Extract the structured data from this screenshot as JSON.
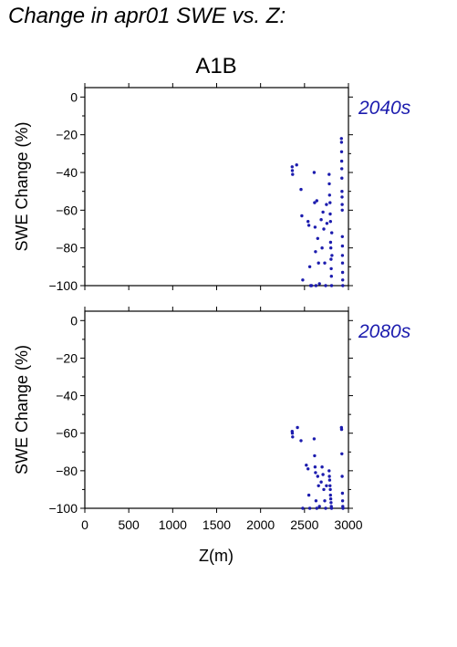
{
  "page_title": "Change in apr01 SWE vs. Z:",
  "chart_data": {
    "type": "scatter",
    "title": "A1B",
    "xlabel": "Z(m)",
    "ylabel": "SWE Change (%)",
    "xlim": [
      0,
      3000
    ],
    "ylim": [
      -100,
      5
    ],
    "xticks": [
      0,
      500,
      1000,
      1500,
      2000,
      2500,
      3000
    ],
    "yticks": [
      0,
      -20,
      -40,
      -60,
      -80,
      -100
    ],
    "marker_color": "#1c1cae",
    "grid": false,
    "panels": [
      {
        "label": "2040s",
        "points": [
          [
            2360,
            -37
          ],
          [
            2362,
            -39
          ],
          [
            2365,
            -41
          ],
          [
            2410,
            -36
          ],
          [
            2460,
            -49
          ],
          [
            2470,
            -63
          ],
          [
            2480,
            -97
          ],
          [
            2540,
            -66
          ],
          [
            2550,
            -68
          ],
          [
            2560,
            -90
          ],
          [
            2570,
            -101
          ],
          [
            2580,
            -100
          ],
          [
            2610,
            -40
          ],
          [
            2615,
            -56
          ],
          [
            2620,
            -69
          ],
          [
            2625,
            -82
          ],
          [
            2630,
            -101
          ],
          [
            2640,
            -55
          ],
          [
            2650,
            -75
          ],
          [
            2660,
            -88
          ],
          [
            2670,
            -99
          ],
          [
            2690,
            -65
          ],
          [
            2700,
            -80
          ],
          [
            2710,
            -61
          ],
          [
            2720,
            -70
          ],
          [
            2730,
            -88
          ],
          [
            2740,
            -100
          ],
          [
            2750,
            -57
          ],
          [
            2755,
            -67
          ],
          [
            2780,
            -41
          ],
          [
            2782,
            -46
          ],
          [
            2785,
            -52
          ],
          [
            2790,
            -56
          ],
          [
            2792,
            -62
          ],
          [
            2795,
            -66
          ],
          [
            2797,
            -77
          ],
          [
            2800,
            -80
          ],
          [
            2802,
            -86
          ],
          [
            2804,
            -91
          ],
          [
            2806,
            -95
          ],
          [
            2808,
            -100
          ],
          [
            2810,
            -72
          ],
          [
            2812,
            -84
          ],
          [
            2920,
            -22
          ],
          [
            2921,
            -24
          ],
          [
            2922,
            -29
          ],
          [
            2923,
            -34
          ],
          [
            2924,
            -38
          ],
          [
            2925,
            -43
          ],
          [
            2926,
            -50
          ],
          [
            2927,
            -53
          ],
          [
            2928,
            -57
          ],
          [
            2929,
            -60
          ],
          [
            2930,
            -74
          ],
          [
            2931,
            -79
          ],
          [
            2932,
            -84
          ],
          [
            2933,
            -88
          ],
          [
            2934,
            -93
          ],
          [
            2935,
            -97
          ],
          [
            2936,
            -100
          ]
        ]
      },
      {
        "label": "2080s",
        "points": [
          [
            2360,
            -59
          ],
          [
            2362,
            -60
          ],
          [
            2365,
            -62
          ],
          [
            2420,
            -57
          ],
          [
            2460,
            -64
          ],
          [
            2480,
            -100
          ],
          [
            2520,
            -77
          ],
          [
            2540,
            -79
          ],
          [
            2550,
            -93
          ],
          [
            2560,
            -100
          ],
          [
            2610,
            -63
          ],
          [
            2615,
            -72
          ],
          [
            2620,
            -78
          ],
          [
            2625,
            -81
          ],
          [
            2630,
            -96
          ],
          [
            2640,
            -100
          ],
          [
            2650,
            -83
          ],
          [
            2660,
            -88
          ],
          [
            2670,
            -99
          ],
          [
            2690,
            -86
          ],
          [
            2700,
            -78
          ],
          [
            2710,
            -82
          ],
          [
            2720,
            -90
          ],
          [
            2730,
            -96
          ],
          [
            2740,
            -100
          ],
          [
            2750,
            -88
          ],
          [
            2780,
            -80
          ],
          [
            2783,
            -83
          ],
          [
            2786,
            -85
          ],
          [
            2790,
            -88
          ],
          [
            2793,
            -90
          ],
          [
            2796,
            -93
          ],
          [
            2799,
            -95
          ],
          [
            2802,
            -97
          ],
          [
            2805,
            -99
          ],
          [
            2808,
            -100
          ],
          [
            2920,
            -57
          ],
          [
            2922,
            -58
          ],
          [
            2925,
            -71
          ],
          [
            2928,
            -83
          ],
          [
            2931,
            -92
          ],
          [
            2934,
            -96
          ],
          [
            2936,
            -99
          ],
          [
            2938,
            -100
          ]
        ]
      }
    ]
  }
}
